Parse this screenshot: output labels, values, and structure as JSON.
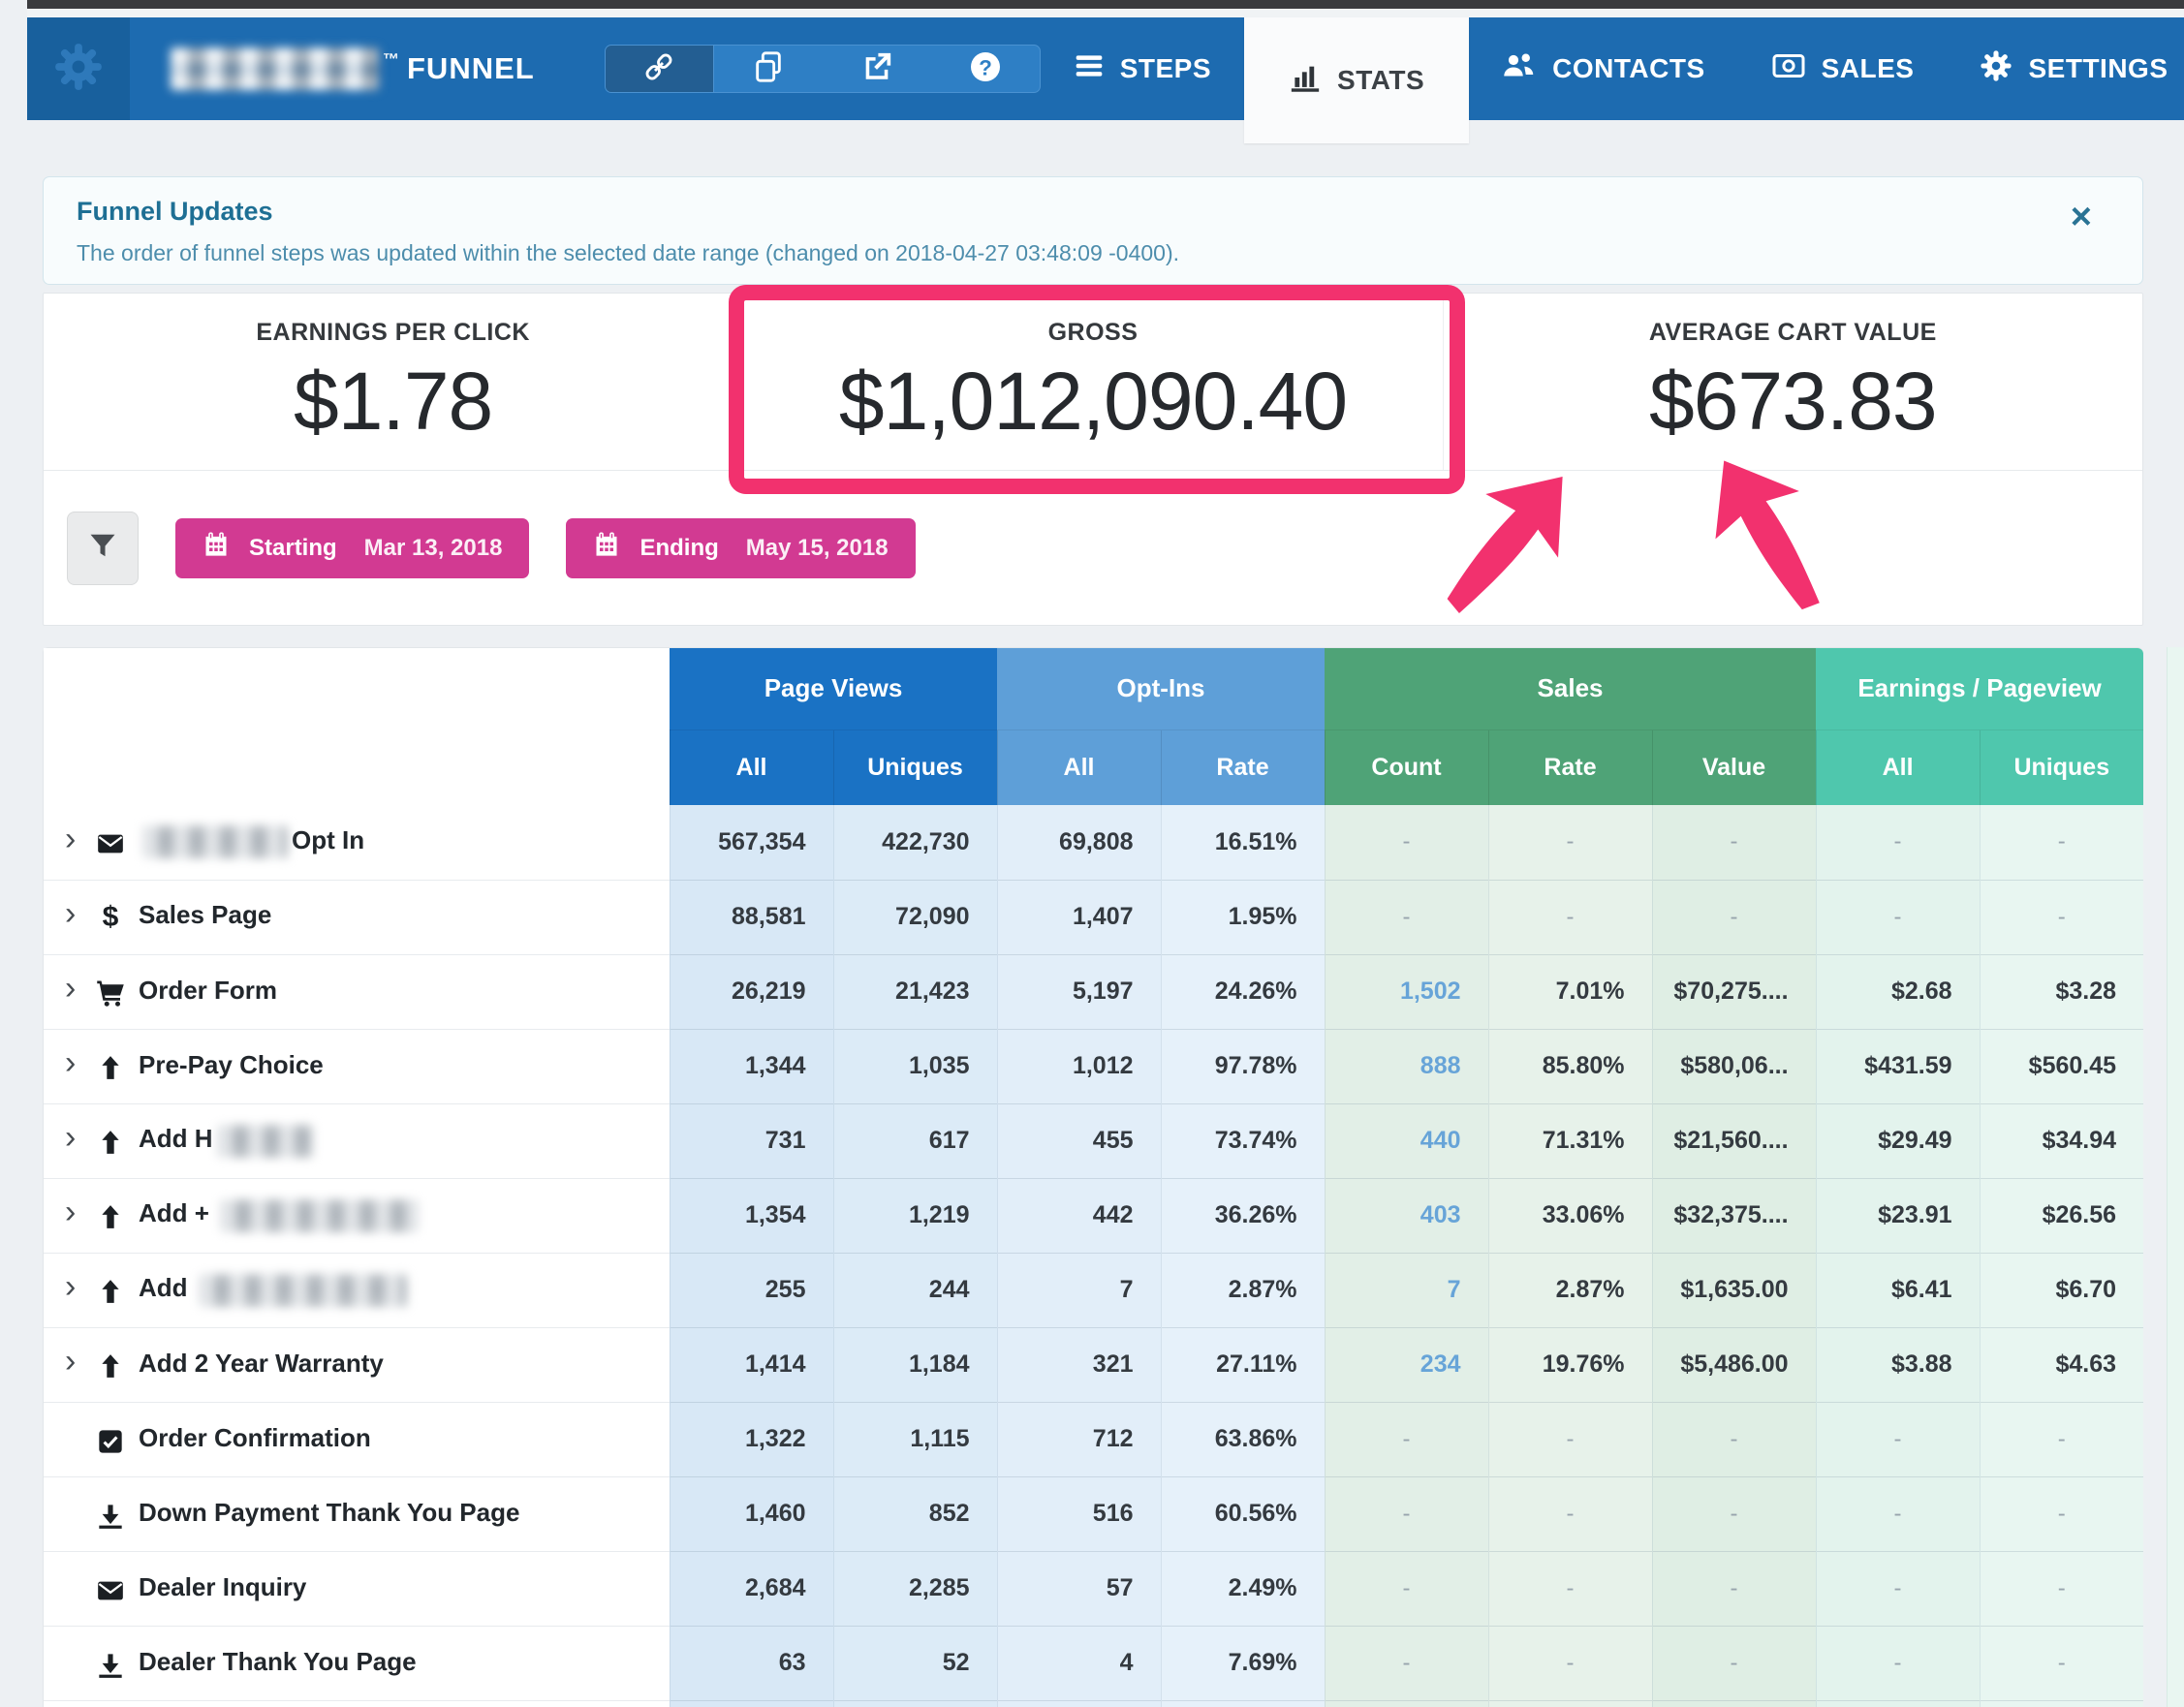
{
  "colors": {
    "nav_blue": "#1d6bb0",
    "highlight_pink": "#f2316e",
    "date_magenta": "#d23a92",
    "pageviews_blue": "#1a72c4",
    "optins_blue": "#5e9fd8",
    "sales_green": "#4fa377",
    "earnings_teal": "#4fc7ad"
  },
  "nav": {
    "brand_tm": "™",
    "brand_name": "FUNNEL",
    "tools": [
      {
        "name": "link-icon"
      },
      {
        "name": "duplicate-icon"
      },
      {
        "name": "external-link-icon"
      },
      {
        "name": "help-icon"
      }
    ],
    "tabs": [
      {
        "label": "STEPS",
        "icon": "menu-icon",
        "active": false
      },
      {
        "label": "STATS",
        "icon": "bar-chart-icon",
        "active": true
      },
      {
        "label": "CONTACTS",
        "icon": "users-icon",
        "active": false
      },
      {
        "label": "SALES",
        "icon": "money-icon",
        "active": false
      },
      {
        "label": "SETTINGS",
        "icon": "gear-icon",
        "active": false
      }
    ]
  },
  "banner": {
    "title": "Funnel Updates",
    "message": "The order of funnel steps was updated within the selected date range (changed on 2018-04-27 03:48:09 -0400).",
    "close_glyph": "×"
  },
  "stats": [
    {
      "label": "EARNINGS PER CLICK",
      "value": "$1.78",
      "highlighted": false
    },
    {
      "label": "GROSS",
      "value": "$1,012,090.40",
      "highlighted": true
    },
    {
      "label": "AVERAGE CART VALUE",
      "value": "$673.83",
      "highlighted": false
    }
  ],
  "filters": {
    "starting_label": "Starting",
    "starting_value": "Mar 13, 2018",
    "ending_label": "Ending",
    "ending_value": "May 15, 2018"
  },
  "table": {
    "groups": [
      {
        "label": "Page Views",
        "cols": [
          "All",
          "Uniques"
        ]
      },
      {
        "label": "Opt-Ins",
        "cols": [
          "All",
          "Rate"
        ]
      },
      {
        "label": "Sales",
        "cols": [
          "Count",
          "Rate",
          "Value"
        ]
      },
      {
        "label": "Earnings / Pageview",
        "cols": [
          "All",
          "Uniques"
        ]
      }
    ],
    "rows": [
      {
        "icon": "envelope-icon",
        "chevron": true,
        "name": [
          {
            "blur": 150
          },
          {
            "t": "Opt In"
          }
        ],
        "values": [
          "567,354",
          "422,730",
          "69,808",
          "16.51%",
          "-",
          "-",
          "-",
          "-",
          "-"
        ]
      },
      {
        "icon": "dollar-icon",
        "chevron": true,
        "name": [
          {
            "t": "Sales Page"
          }
        ],
        "values": [
          "88,581",
          "72,090",
          "1,407",
          "1.95%",
          "-",
          "-",
          "-",
          "-",
          "-"
        ]
      },
      {
        "icon": "cart-icon",
        "chevron": true,
        "name": [
          {
            "t": "Order Form"
          }
        ],
        "values": [
          "26,219",
          "21,423",
          "5,197",
          "24.26%",
          "1,502",
          "7.01%",
          "$70,275....",
          "$2.68",
          "$3.28"
        ]
      },
      {
        "icon": "arrow-up-icon",
        "chevron": true,
        "name": [
          {
            "t": "Pre-Pay Choice"
          }
        ],
        "values": [
          "1,344",
          "1,035",
          "1,012",
          "97.78%",
          "888",
          "85.80%",
          "$580,06...",
          "$431.59",
          "$560.45"
        ]
      },
      {
        "icon": "arrow-up-icon",
        "chevron": true,
        "name": [
          {
            "t": "Add H"
          },
          {
            "blur": 100
          }
        ],
        "values": [
          "731",
          "617",
          "455",
          "73.74%",
          "440",
          "71.31%",
          "$21,560....",
          "$29.49",
          "$34.94"
        ]
      },
      {
        "icon": "arrow-up-icon",
        "chevron": true,
        "name": [
          {
            "t": "Add + "
          },
          {
            "blur": 205
          }
        ],
        "values": [
          "1,354",
          "1,219",
          "442",
          "36.26%",
          "403",
          "33.06%",
          "$32,375....",
          "$23.91",
          "$26.56"
        ]
      },
      {
        "icon": "arrow-up-icon",
        "chevron": true,
        "name": [
          {
            "t": "Add "
          },
          {
            "blur": 215
          }
        ],
        "values": [
          "255",
          "244",
          "7",
          "2.87%",
          "7",
          "2.87%",
          "$1,635.00",
          "$6.41",
          "$6.70"
        ]
      },
      {
        "icon": "arrow-up-icon",
        "chevron": true,
        "name": [
          {
            "t": "Add 2 Year Warranty"
          }
        ],
        "values": [
          "1,414",
          "1,184",
          "321",
          "27.11%",
          "234",
          "19.76%",
          "$5,486.00",
          "$3.88",
          "$4.63"
        ]
      },
      {
        "icon": "check-square-icon",
        "chevron": false,
        "name": [
          {
            "t": "Order Confirmation"
          }
        ],
        "values": [
          "1,322",
          "1,115",
          "712",
          "63.86%",
          "-",
          "-",
          "-",
          "-",
          "-"
        ]
      },
      {
        "icon": "download-icon",
        "chevron": false,
        "name": [
          {
            "t": "Down Payment Thank You Page"
          }
        ],
        "values": [
          "1,460",
          "852",
          "516",
          "60.56%",
          "-",
          "-",
          "-",
          "-",
          "-"
        ]
      },
      {
        "icon": "envelope-icon",
        "chevron": false,
        "name": [
          {
            "t": "Dealer Inquiry"
          }
        ],
        "values": [
          "2,684",
          "2,285",
          "57",
          "2.49%",
          "-",
          "-",
          "-",
          "-",
          "-"
        ]
      },
      {
        "icon": "download-icon",
        "chevron": false,
        "name": [
          {
            "t": "Dealer Thank You Page"
          }
        ],
        "values": [
          "63",
          "52",
          "4",
          "7.69%",
          "-",
          "-",
          "-",
          "-",
          "-"
        ]
      },
      {
        "icon": null,
        "chevron": false,
        "name": [],
        "partial": true,
        "values": [
          "",
          "",
          "",
          "",
          "",
          "",
          "",
          "",
          ""
        ]
      }
    ]
  }
}
